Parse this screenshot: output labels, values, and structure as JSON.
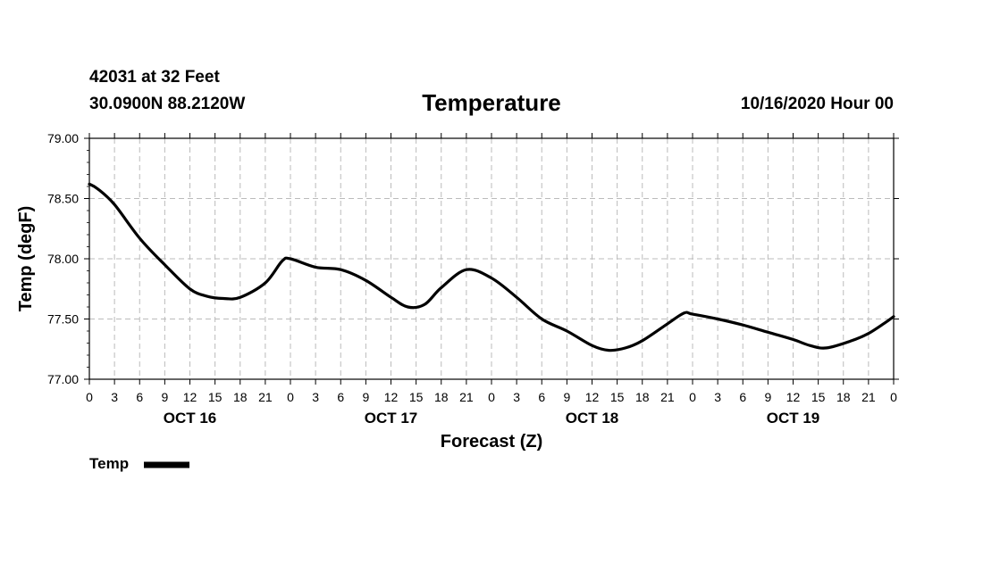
{
  "header": {
    "station": "42031 at 32 Feet",
    "coords": "30.0900N 88.2120W",
    "datetime": "10/16/2020 Hour 00"
  },
  "chart_data": {
    "type": "line",
    "title": "Temperature",
    "xlabel": "Forecast (Z)",
    "ylabel": "Temp (degF)",
    "ylim": [
      77.0,
      79.0
    ],
    "yticks": [
      "77.00",
      "77.50",
      "78.00",
      "78.50",
      "79.00"
    ],
    "xlim_hours": [
      0,
      96
    ],
    "xtick_step_hours": 3,
    "xtick_labels": [
      "0",
      "3",
      "6",
      "9",
      "12",
      "15",
      "18",
      "21",
      "0",
      "3",
      "6",
      "9",
      "12",
      "15",
      "18",
      "21",
      "0",
      "3",
      "6",
      "9",
      "12",
      "15",
      "18",
      "21",
      "0",
      "3",
      "6",
      "9",
      "12",
      "15",
      "18",
      "21",
      "0"
    ],
    "day_labels": [
      {
        "hour": 12,
        "label": "OCT 16"
      },
      {
        "hour": 36,
        "label": "OCT 17"
      },
      {
        "hour": 60,
        "label": "OCT 18"
      },
      {
        "hour": 84,
        "label": "OCT 19"
      }
    ],
    "grid": true,
    "line_color": "#000000",
    "series": [
      {
        "name": "Temp",
        "x": [
          0,
          1,
          3,
          6,
          9,
          12,
          14,
          16,
          18,
          21,
          23,
          24,
          27,
          30,
          33,
          36,
          38,
          40,
          42,
          45,
          48,
          51,
          54,
          57,
          60,
          62,
          64,
          66,
          69,
          71,
          72,
          75,
          78,
          81,
          84,
          86,
          88,
          91,
          93,
          95,
          96
        ],
        "values": [
          78.62,
          78.58,
          78.45,
          78.17,
          77.95,
          77.75,
          77.69,
          77.67,
          77.68,
          77.8,
          77.98,
          78.0,
          77.93,
          77.91,
          77.82,
          77.68,
          77.6,
          77.62,
          77.76,
          77.91,
          77.84,
          77.68,
          77.5,
          77.4,
          77.28,
          77.24,
          77.26,
          77.32,
          77.46,
          77.55,
          77.54,
          77.5,
          77.45,
          77.39,
          77.33,
          77.28,
          77.26,
          77.32,
          77.38,
          77.47,
          77.52
        ]
      }
    ],
    "legend": {
      "label": "Temp",
      "placement": "bottom-left"
    }
  }
}
